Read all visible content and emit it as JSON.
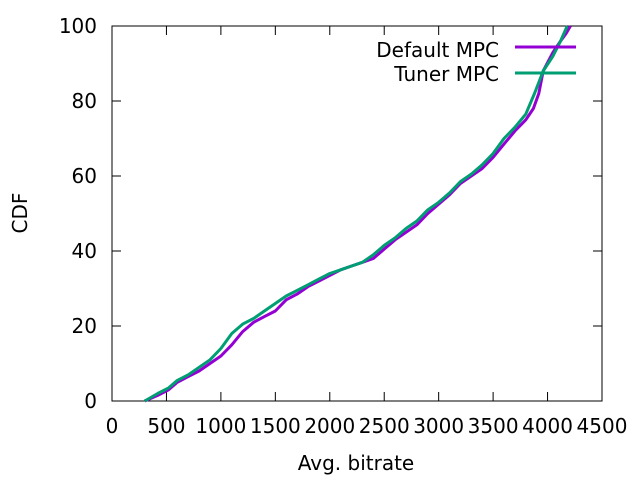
{
  "chart_data": {
    "type": "line",
    "title": "",
    "xlabel": "Avg. bitrate",
    "ylabel": "CDF",
    "xlim": [
      0,
      4500
    ],
    "ylim": [
      0,
      100
    ],
    "xticks": [
      0,
      500,
      1000,
      1500,
      2000,
      2500,
      3000,
      3500,
      4000,
      4500
    ],
    "yticks": [
      0,
      20,
      40,
      60,
      80,
      100
    ],
    "grid": false,
    "legend_position": "top-right",
    "series": [
      {
        "name": "Default MPC",
        "color": "#9400d3",
        "points": [
          [
            300,
            0
          ],
          [
            420,
            1.5
          ],
          [
            520,
            3
          ],
          [
            600,
            5
          ],
          [
            700,
            6.5
          ],
          [
            800,
            8
          ],
          [
            900,
            10
          ],
          [
            1000,
            12
          ],
          [
            1100,
            15
          ],
          [
            1200,
            18.5
          ],
          [
            1300,
            21
          ],
          [
            1400,
            22.5
          ],
          [
            1500,
            24
          ],
          [
            1600,
            27
          ],
          [
            1700,
            28.5
          ],
          [
            1800,
            30.5
          ],
          [
            1900,
            32
          ],
          [
            2000,
            33.5
          ],
          [
            2100,
            35
          ],
          [
            2200,
            36
          ],
          [
            2300,
            37
          ],
          [
            2400,
            38
          ],
          [
            2500,
            40.5
          ],
          [
            2600,
            43
          ],
          [
            2700,
            45
          ],
          [
            2800,
            47
          ],
          [
            2900,
            50
          ],
          [
            3000,
            52.5
          ],
          [
            3100,
            55
          ],
          [
            3200,
            58
          ],
          [
            3300,
            60
          ],
          [
            3400,
            62
          ],
          [
            3500,
            65
          ],
          [
            3600,
            68.5
          ],
          [
            3700,
            72
          ],
          [
            3800,
            75
          ],
          [
            3870,
            78
          ],
          [
            3920,
            82
          ],
          [
            3960,
            88
          ],
          [
            4050,
            93
          ],
          [
            4120,
            96
          ],
          [
            4170,
            98
          ],
          [
            4210,
            100
          ]
        ]
      },
      {
        "name": "Tuner MPC",
        "color": "#009e73",
        "points": [
          [
            300,
            0
          ],
          [
            420,
            2
          ],
          [
            520,
            3.5
          ],
          [
            600,
            5.5
          ],
          [
            700,
            7
          ],
          [
            800,
            9
          ],
          [
            900,
            11
          ],
          [
            1000,
            14
          ],
          [
            1100,
            18
          ],
          [
            1200,
            20.5
          ],
          [
            1300,
            22
          ],
          [
            1400,
            24
          ],
          [
            1500,
            26
          ],
          [
            1600,
            28
          ],
          [
            1700,
            29.5
          ],
          [
            1800,
            31
          ],
          [
            1900,
            32.5
          ],
          [
            2000,
            34
          ],
          [
            2100,
            35
          ],
          [
            2200,
            36
          ],
          [
            2300,
            37
          ],
          [
            2400,
            39
          ],
          [
            2500,
            41.5
          ],
          [
            2600,
            43.5
          ],
          [
            2700,
            46
          ],
          [
            2800,
            48
          ],
          [
            2900,
            51
          ],
          [
            3000,
            53
          ],
          [
            3100,
            55.5
          ],
          [
            3200,
            58.5
          ],
          [
            3300,
            60.5
          ],
          [
            3400,
            63
          ],
          [
            3500,
            66
          ],
          [
            3600,
            70
          ],
          [
            3700,
            73
          ],
          [
            3800,
            76.5
          ],
          [
            3880,
            82
          ],
          [
            3960,
            88
          ],
          [
            4050,
            92
          ],
          [
            4120,
            96
          ],
          [
            4180,
            100
          ]
        ]
      }
    ]
  }
}
